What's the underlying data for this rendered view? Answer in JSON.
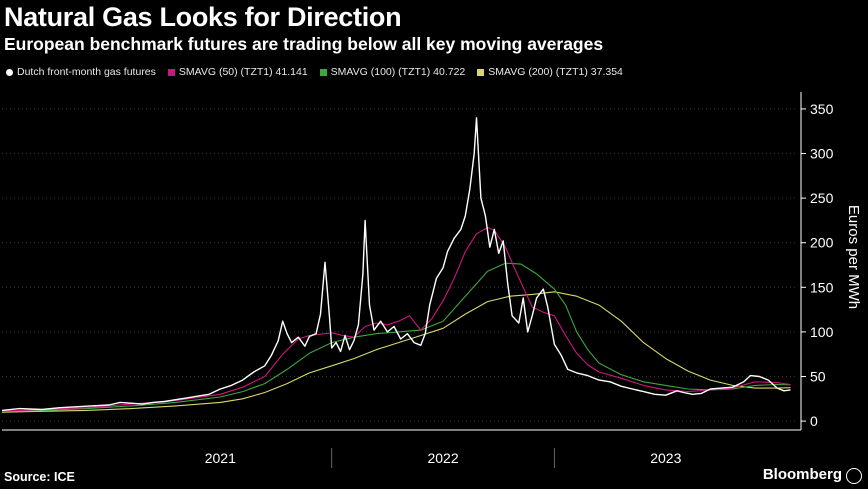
{
  "header": {
    "title": "Natural Gas Looks for Direction",
    "subtitle": "European benchmark futures are trading below all key moving averages"
  },
  "footer": {
    "source": "Source: ICE",
    "brand": "Bloomberg"
  },
  "colors": {
    "price": "#ffffff",
    "sma50": "#d0147e",
    "sma100": "#3ea63e",
    "sma200": "#d8d86a",
    "axis": "#ffffff",
    "grid": "#333333"
  },
  "chart_data": {
    "type": "line",
    "title": "Natural Gas Looks for Direction",
    "ylabel": "Euros per MWh",
    "xlabel": "",
    "ylim": [
      -10,
      360
    ],
    "xlim": [
      2020.52,
      2024.08
    ],
    "yticks": [
      0,
      50,
      100,
      150,
      200,
      250,
      300,
      350
    ],
    "x_tick_labels": [
      {
        "label": "2021",
        "x": 2021.5
      },
      {
        "label": "2022",
        "x": 2022.5
      },
      {
        "label": "2023",
        "x": 2023.5
      }
    ],
    "year_dividers": [
      2022.0,
      2023.0
    ],
    "series": [
      {
        "name": "Dutch front-month gas futures",
        "legend": "Dutch front-month gas futures",
        "points": [
          [
            2020.52,
            12
          ],
          [
            2020.6,
            14
          ],
          [
            2020.7,
            13
          ],
          [
            2020.78,
            15
          ],
          [
            2020.85,
            16
          ],
          [
            2020.92,
            17
          ],
          [
            2021.0,
            18
          ],
          [
            2021.05,
            21
          ],
          [
            2021.1,
            20
          ],
          [
            2021.15,
            19
          ],
          [
            2021.2,
            21
          ],
          [
            2021.25,
            22
          ],
          [
            2021.3,
            24
          ],
          [
            2021.35,
            26
          ],
          [
            2021.4,
            28
          ],
          [
            2021.45,
            30
          ],
          [
            2021.5,
            36
          ],
          [
            2021.55,
            40
          ],
          [
            2021.6,
            46
          ],
          [
            2021.65,
            55
          ],
          [
            2021.7,
            62
          ],
          [
            2021.73,
            74
          ],
          [
            2021.76,
            90
          ],
          [
            2021.78,
            112
          ],
          [
            2021.8,
            98
          ],
          [
            2021.82,
            88
          ],
          [
            2021.85,
            94
          ],
          [
            2021.88,
            84
          ],
          [
            2021.9,
            95
          ],
          [
            2021.93,
            98
          ],
          [
            2021.95,
            120
          ],
          [
            2021.97,
            178
          ],
          [
            2021.99,
            118
          ],
          [
            2022.0,
            82
          ],
          [
            2022.02,
            88
          ],
          [
            2022.04,
            78
          ],
          [
            2022.06,
            96
          ],
          [
            2022.08,
            80
          ],
          [
            2022.1,
            90
          ],
          [
            2022.12,
            108
          ],
          [
            2022.14,
            165
          ],
          [
            2022.15,
            225
          ],
          [
            2022.17,
            130
          ],
          [
            2022.19,
            102
          ],
          [
            2022.22,
            112
          ],
          [
            2022.25,
            100
          ],
          [
            2022.28,
            106
          ],
          [
            2022.31,
            92
          ],
          [
            2022.34,
            98
          ],
          [
            2022.37,
            88
          ],
          [
            2022.4,
            85
          ],
          [
            2022.42,
            98
          ],
          [
            2022.44,
            130
          ],
          [
            2022.47,
            160
          ],
          [
            2022.5,
            172
          ],
          [
            2022.52,
            190
          ],
          [
            2022.55,
            205
          ],
          [
            2022.58,
            215
          ],
          [
            2022.6,
            230
          ],
          [
            2022.62,
            260
          ],
          [
            2022.64,
            300
          ],
          [
            2022.65,
            340
          ],
          [
            2022.67,
            250
          ],
          [
            2022.69,
            230
          ],
          [
            2022.71,
            195
          ],
          [
            2022.73,
            215
          ],
          [
            2022.75,
            188
          ],
          [
            2022.77,
            202
          ],
          [
            2022.79,
            155
          ],
          [
            2022.81,
            118
          ],
          [
            2022.84,
            110
          ],
          [
            2022.86,
            138
          ],
          [
            2022.88,
            100
          ],
          [
            2022.9,
            118
          ],
          [
            2022.92,
            138
          ],
          [
            2022.95,
            148
          ],
          [
            2022.97,
            128
          ],
          [
            2023.0,
            86
          ],
          [
            2023.03,
            74
          ],
          [
            2023.06,
            58
          ],
          [
            2023.1,
            54
          ],
          [
            2023.15,
            51
          ],
          [
            2023.2,
            46
          ],
          [
            2023.25,
            44
          ],
          [
            2023.3,
            39
          ],
          [
            2023.35,
            36
          ],
          [
            2023.4,
            33
          ],
          [
            2023.45,
            30
          ],
          [
            2023.5,
            29
          ],
          [
            2023.55,
            34
          ],
          [
            2023.58,
            32
          ],
          [
            2023.62,
            30
          ],
          [
            2023.66,
            31
          ],
          [
            2023.7,
            36
          ],
          [
            2023.75,
            37
          ],
          [
            2023.8,
            38
          ],
          [
            2023.85,
            44
          ],
          [
            2023.88,
            51
          ],
          [
            2023.92,
            50
          ],
          [
            2023.96,
            46
          ],
          [
            2024.0,
            37
          ],
          [
            2024.03,
            34
          ],
          [
            2024.06,
            35
          ]
        ]
      },
      {
        "name": "SMAVG (50)",
        "legend": "SMAVG (50) (TZT1) 41.141",
        "points": [
          [
            2020.52,
            11
          ],
          [
            2020.7,
            13
          ],
          [
            2020.9,
            15
          ],
          [
            2021.1,
            19
          ],
          [
            2021.3,
            23
          ],
          [
            2021.5,
            30
          ],
          [
            2021.6,
            38
          ],
          [
            2021.7,
            50
          ],
          [
            2021.78,
            75
          ],
          [
            2021.85,
            92
          ],
          [
            2021.9,
            96
          ],
          [
            2022.0,
            99
          ],
          [
            2022.05,
            96
          ],
          [
            2022.1,
            94
          ],
          [
            2022.15,
            106
          ],
          [
            2022.2,
            110
          ],
          [
            2022.25,
            108
          ],
          [
            2022.3,
            112
          ],
          [
            2022.35,
            118
          ],
          [
            2022.4,
            102
          ],
          [
            2022.45,
            115
          ],
          [
            2022.5,
            135
          ],
          [
            2022.55,
            160
          ],
          [
            2022.6,
            190
          ],
          [
            2022.65,
            210
          ],
          [
            2022.7,
            217
          ],
          [
            2022.73,
            214
          ],
          [
            2022.78,
            195
          ],
          [
            2022.82,
            172
          ],
          [
            2022.86,
            150
          ],
          [
            2022.9,
            128
          ],
          [
            2022.95,
            122
          ],
          [
            2023.0,
            118
          ],
          [
            2023.05,
            96
          ],
          [
            2023.1,
            76
          ],
          [
            2023.15,
            63
          ],
          [
            2023.2,
            55
          ],
          [
            2023.3,
            48
          ],
          [
            2023.4,
            40
          ],
          [
            2023.5,
            35
          ],
          [
            2023.6,
            33
          ],
          [
            2023.7,
            35
          ],
          [
            2023.8,
            37
          ],
          [
            2023.9,
            44
          ],
          [
            2024.0,
            43
          ],
          [
            2024.06,
            41
          ]
        ]
      },
      {
        "name": "SMAVG (100)",
        "legend": "SMAVG (100) (TZT1) 40.722",
        "points": [
          [
            2020.52,
            11
          ],
          [
            2020.7,
            12
          ],
          [
            2020.9,
            14
          ],
          [
            2021.1,
            17
          ],
          [
            2021.3,
            21
          ],
          [
            2021.5,
            27
          ],
          [
            2021.6,
            33
          ],
          [
            2021.7,
            42
          ],
          [
            2021.8,
            58
          ],
          [
            2021.9,
            76
          ],
          [
            2022.0,
            88
          ],
          [
            2022.1,
            94
          ],
          [
            2022.2,
            98
          ],
          [
            2022.3,
            100
          ],
          [
            2022.4,
            102
          ],
          [
            2022.5,
            112
          ],
          [
            2022.6,
            140
          ],
          [
            2022.7,
            168
          ],
          [
            2022.78,
            177
          ],
          [
            2022.85,
            176
          ],
          [
            2022.92,
            165
          ],
          [
            2023.0,
            148
          ],
          [
            2023.05,
            130
          ],
          [
            2023.1,
            100
          ],
          [
            2023.15,
            80
          ],
          [
            2023.2,
            65
          ],
          [
            2023.3,
            52
          ],
          [
            2023.4,
            44
          ],
          [
            2023.5,
            40
          ],
          [
            2023.6,
            36
          ],
          [
            2023.7,
            35
          ],
          [
            2023.8,
            36
          ],
          [
            2023.9,
            40
          ],
          [
            2024.0,
            41
          ],
          [
            2024.06,
            40.7
          ]
        ]
      },
      {
        "name": "SMAVG (200)",
        "legend": "SMAVG (200) (TZT1) 37.354",
        "points": [
          [
            2020.52,
            10
          ],
          [
            2020.7,
            11
          ],
          [
            2020.9,
            12
          ],
          [
            2021.1,
            14
          ],
          [
            2021.3,
            17
          ],
          [
            2021.5,
            21
          ],
          [
            2021.6,
            25
          ],
          [
            2021.7,
            32
          ],
          [
            2021.8,
            42
          ],
          [
            2021.9,
            54
          ],
          [
            2022.0,
            62
          ],
          [
            2022.1,
            70
          ],
          [
            2022.2,
            80
          ],
          [
            2022.3,
            88
          ],
          [
            2022.4,
            96
          ],
          [
            2022.5,
            104
          ],
          [
            2022.6,
            120
          ],
          [
            2022.7,
            134
          ],
          [
            2022.8,
            140
          ],
          [
            2022.9,
            142
          ],
          [
            2023.0,
            145
          ],
          [
            2023.1,
            140
          ],
          [
            2023.2,
            130
          ],
          [
            2023.3,
            112
          ],
          [
            2023.4,
            88
          ],
          [
            2023.5,
            70
          ],
          [
            2023.6,
            56
          ],
          [
            2023.7,
            46
          ],
          [
            2023.8,
            40
          ],
          [
            2023.9,
            37
          ],
          [
            2024.0,
            37
          ],
          [
            2024.06,
            37.4
          ]
        ]
      }
    ],
    "legend_position": "top-left"
  }
}
